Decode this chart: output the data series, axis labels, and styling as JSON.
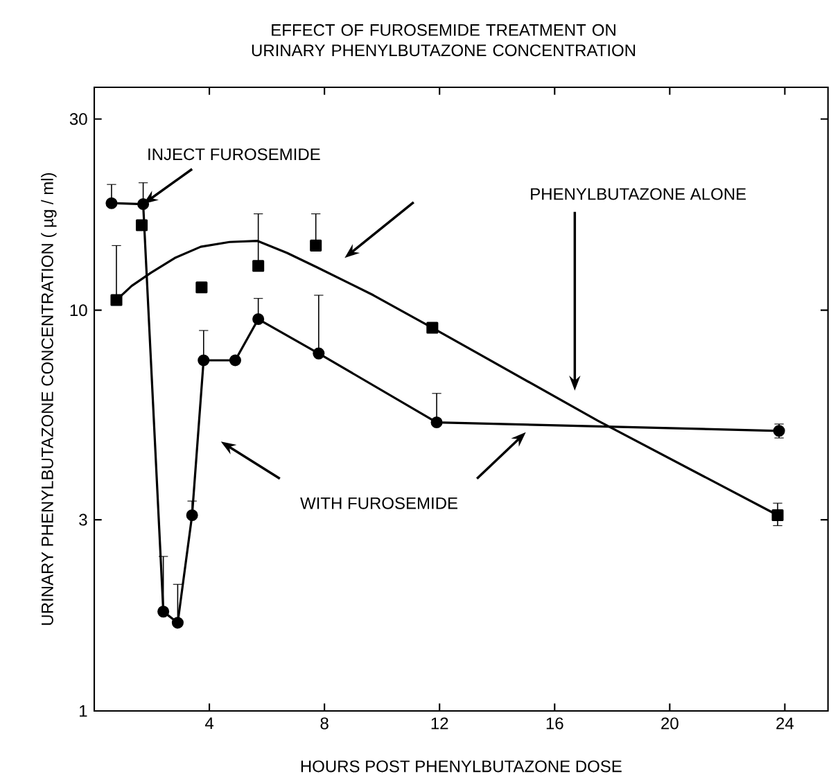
{
  "chart_data": {
    "type": "line",
    "title": "EFFECT OF FUROSEMIDE TREATMENT ON URINARY PHENYLBUTAZONE CONCENTRATION",
    "xlabel": "HOURS POST PHENYLBUTAZONE DOSE",
    "ylabel": "URINARY PHENYLBUTAZONE CONCENTRATION ( µg / ml)",
    "log": "y",
    "xlim": [
      0,
      25.5
    ],
    "ylim": [
      1,
      36
    ],
    "xticks": [
      4,
      8,
      12,
      16,
      20,
      24
    ],
    "yticks": [
      1,
      3,
      10,
      30
    ],
    "grid": false,
    "legend": false,
    "series": [
      {
        "marker": "circle",
        "color": "#000000",
        "x": [
          0.6,
          1.7,
          2.4,
          2.9,
          3.4,
          3.8,
          4.9,
          5.7,
          7.8,
          11.9,
          23.8
        ],
        "values": [
          18.5,
          18.4,
          1.77,
          1.66,
          3.08,
          7.5,
          7.5,
          9.5,
          7.8,
          5.25,
          5.0
        ],
        "errors": [
          [
            18.5,
            20.6
          ],
          [
            18.4,
            20.8
          ],
          [
            1.77,
            2.43
          ],
          [
            1.66,
            2.07
          ],
          [
            3.08,
            3.34
          ],
          [
            7.5,
            8.9
          ],
          null,
          [
            9.5,
            10.7
          ],
          [
            7.8,
            10.9
          ],
          [
            5.25,
            6.2
          ],
          [
            4.8,
            5.2
          ]
        ]
      },
      {
        "type": "scatter",
        "marker": "square",
        "color": "#000000",
        "x": [
          0.77,
          1.65,
          3.73,
          5.7,
          7.7,
          11.75,
          23.75
        ],
        "values": [
          10.6,
          16.3,
          11.4,
          12.9,
          14.5,
          9.04,
          3.08
        ],
        "errors": [
          [
            10.6,
            14.5
          ],
          null,
          null,
          [
            12.9,
            17.4
          ],
          [
            14.5,
            17.4
          ],
          null,
          [
            2.9,
            3.3
          ]
        ]
      },
      {
        "type": "line",
        "marker": "none",
        "color": "#000000",
        "x": [
          0.77,
          1.3,
          1.97,
          2.8,
          3.7,
          4.7,
          5.66,
          6.7,
          7.74,
          9.7,
          11.75,
          17.5,
          23.75
        ],
        "values": [
          10.6,
          11.5,
          12.4,
          13.5,
          14.4,
          14.8,
          14.9,
          13.9,
          12.8,
          10.9,
          9.04,
          5.3,
          3.08
        ]
      }
    ],
    "annotations": [
      {
        "text": "INJECT FUROSEMIDE",
        "x": 1.7,
        "y": 18.4
      },
      "PHENYLBUTAZONE ALONE",
      "WITH FUROSEMIDE"
    ]
  }
}
